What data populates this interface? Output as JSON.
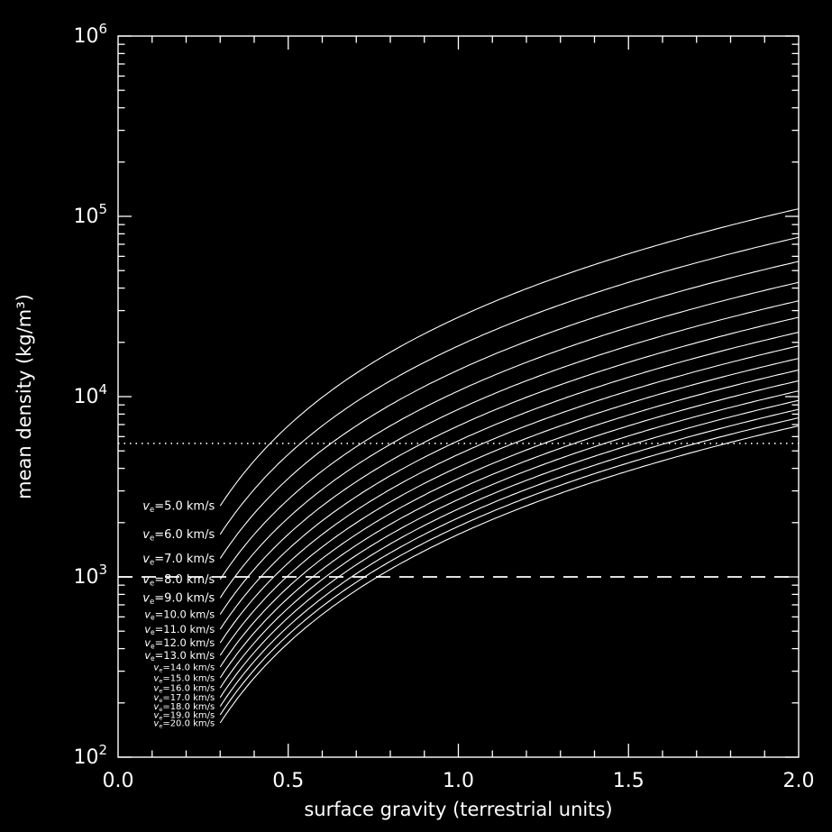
{
  "page": {
    "background": "#000000",
    "foreground": "#ffffff"
  },
  "chart_data": {
    "type": "line",
    "title": "",
    "xlabel": "surface gravity (terrestrial units)",
    "ylabel": "mean density (kg/m³)",
    "x_axis": {
      "min": 0.0,
      "max": 2.0,
      "major_ticks": [
        0.0,
        0.5,
        1.0,
        1.5,
        2.0
      ],
      "tick_labels": [
        "0.0",
        "0.5",
        "1.0",
        "1.5",
        "2.0"
      ],
      "minor_tick_step": 0.1
    },
    "y_axis": {
      "scale": "log",
      "min": 100,
      "max": 1000000,
      "tick_label_base": "10",
      "tick_exponents": [
        2,
        3,
        4,
        5,
        6
      ]
    },
    "grid": false,
    "legend_position": "inline-left-of-curves",
    "colors": {
      "background": "#000000",
      "line": "#ffffff"
    },
    "series_label": {
      "prefix_main": "v",
      "prefix_sub": "e",
      "equals": "=",
      "unit": " km/s"
    },
    "model": "quadratic: density = coeff * gravity^2",
    "x": [
      0.3,
      0.4,
      0.5,
      0.6,
      0.7,
      0.8,
      0.9,
      1.0,
      1.1,
      1.2,
      1.3,
      1.4,
      1.5,
      1.6,
      1.7,
      1.8,
      1.9,
      2.0
    ],
    "series": [
      {
        "name": "v_e=5.0 km/s",
        "v": "5.0",
        "coeff": 27539,
        "values": [
          2479,
          4406,
          6885,
          9914,
          13494,
          17625,
          22307,
          27539,
          33323,
          39657,
          46542,
          53977,
          61964,
          70501,
          79589,
          89228,
          99417,
          110158
        ]
      },
      {
        "name": "v_e=6.0 km/s",
        "v": "6.0",
        "coeff": 19125,
        "values": [
          1721,
          3060,
          4781,
          6885,
          9371,
          12240,
          15491,
          19125,
          23141,
          27539,
          32321,
          37484,
          43030,
          48959,
          55270,
          61964,
          69040,
          76498
        ]
      },
      {
        "name": "v_e=7.0 km/s",
        "v": "7.0",
        "coeff": 14051,
        "values": [
          1265,
          2248,
          3513,
          5058,
          6885,
          8992,
          11381,
          14051,
          17001,
          20233,
          23746,
          27539,
          31614,
          35970,
          40606,
          45524,
          50723,
          56203
        ]
      },
      {
        "name": "v_e=8.0 km/s",
        "v": "8.0",
        "coeff": 10758,
        "values": [
          968,
          1721,
          2689,
          3873,
          5271,
          6885,
          8714,
          10758,
          13017,
          15491,
          18180,
          21085,
          24204,
          27539,
          31090,
          34855,
          38835,
          43030
        ]
      },
      {
        "name": "v_e=9.0 km/s",
        "v": "9.0",
        "coeff": 8500,
        "values": [
          765,
          1360,
          2125,
          3060,
          4165,
          5440,
          6885,
          8500,
          10285,
          12240,
          14365,
          16660,
          19125,
          21760,
          24565,
          27539,
          30685,
          34000
        ]
      },
      {
        "name": "v_e=10.0 km/s",
        "v": "10.0",
        "coeff": 6885,
        "values": [
          620,
          1102,
          1721,
          2479,
          3374,
          4406,
          5577,
          6885,
          8331,
          9914,
          11636,
          13495,
          15491,
          17626,
          19898,
          22308,
          24855,
          27540
        ]
      },
      {
        "name": "v_e=11.0 km/s",
        "v": "11.0",
        "coeff": 5690,
        "values": [
          512,
          910,
          1423,
          2048,
          2788,
          3642,
          4609,
          5690,
          6885,
          8194,
          9616,
          11152,
          12803,
          14566,
          16444,
          18436,
          20541,
          22760
        ]
      },
      {
        "name": "v_e=12.0 km/s",
        "v": "12.0",
        "coeff": 4781,
        "values": [
          430,
          765,
          1195,
          1721,
          2343,
          3060,
          3873,
          4781,
          5785,
          6885,
          8080,
          9371,
          10757,
          12239,
          13817,
          15491,
          17260,
          19124
        ]
      },
      {
        "name": "v_e=13.0 km/s",
        "v": "13.0",
        "coeff": 4074,
        "values": [
          367,
          652,
          1019,
          1467,
          1996,
          2607,
          3300,
          4074,
          4930,
          5867,
          6885,
          7985,
          9167,
          10429,
          11774,
          13200,
          14707,
          16296
        ]
      },
      {
        "name": "v_e=14.0 km/s",
        "v": "14.0",
        "coeff": 3513,
        "values": [
          316,
          562,
          878,
          1265,
          1721,
          2248,
          2846,
          3513,
          4251,
          5059,
          5937,
          6885,
          7904,
          8993,
          10153,
          11382,
          12682,
          14052
        ]
      },
      {
        "name": "v_e=15.0 km/s",
        "v": "15.0",
        "coeff": 3060,
        "values": [
          275,
          490,
          765,
          1102,
          1499,
          1958,
          2479,
          3060,
          3703,
          4406,
          5171,
          5998,
          6885,
          7834,
          8843,
          9914,
          11047,
          12240
        ]
      },
      {
        "name": "v_e=16.0 km/s",
        "v": "16.0",
        "coeff": 2689,
        "values": [
          242,
          430,
          672,
          968,
          1318,
          1721,
          2178,
          2689,
          3254,
          3872,
          4544,
          5270,
          6050,
          6884,
          7771,
          8712,
          9707,
          10756
        ]
      },
      {
        "name": "v_e=17.0 km/s",
        "v": "17.0",
        "coeff": 2382,
        "values": [
          214,
          381,
          596,
          858,
          1167,
          1524,
          1929,
          2382,
          2882,
          3430,
          4026,
          4669,
          5360,
          6098,
          6884,
          7718,
          8599,
          9528
        ]
      },
      {
        "name": "v_e=18.0 km/s",
        "v": "18.0",
        "coeff": 2125,
        "values": [
          191,
          340,
          531,
          765,
          1041,
          1360,
          1721,
          2125,
          2571,
          3060,
          3591,
          4165,
          4781,
          5440,
          6141,
          6885,
          7671,
          8500
        ]
      },
      {
        "name": "v_e=19.0 km/s",
        "v": "19.0",
        "coeff": 1907,
        "values": [
          172,
          305,
          477,
          687,
          934,
          1220,
          1545,
          1907,
          2307,
          2746,
          3223,
          3738,
          4291,
          4882,
          5511,
          6179,
          6884,
          7628
        ]
      },
      {
        "name": "v_e=20.0 km/s",
        "v": "20.0",
        "coeff": 1721,
        "values": [
          155,
          275,
          430,
          620,
          843,
          1101,
          1394,
          1721,
          2082,
          2478,
          2908,
          3373,
          3872,
          4406,
          4974,
          5576,
          6213,
          6884
        ]
      }
    ],
    "reference_lines": [
      {
        "style": "dotted",
        "value": 5500
      },
      {
        "style": "dashed",
        "value": 1000
      }
    ]
  }
}
